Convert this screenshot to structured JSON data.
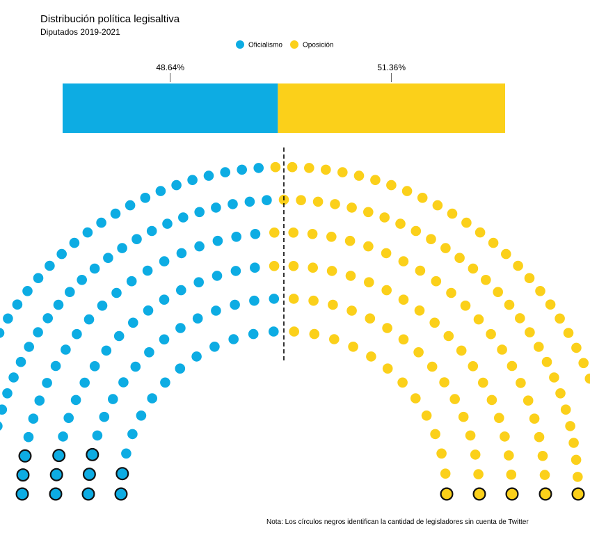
{
  "chart_data": {
    "type": "parliament",
    "title": "Distribución política legisaltiva",
    "subtitle": "Diputados 2019-2021",
    "note": "Nota: Los círculos negros identifican la cantidad de legisladores sin cuenta de Twitter",
    "legend": {
      "position": "top-center",
      "entries": [
        {
          "name": "Oficialismo",
          "color": "#0DACE3"
        },
        {
          "name": "Oposición",
          "color": "#FBD01A"
        }
      ]
    },
    "share_bar": {
      "segments": [
        {
          "name": "Oficialismo",
          "value": 48.64,
          "label": "48.64%",
          "color": "#0DACE3"
        },
        {
          "name": "Oposición",
          "value": 51.36,
          "label": "51.36%",
          "color": "#FBD01A"
        }
      ]
    },
    "seats": {
      "total": 257,
      "series": [
        {
          "name": "Oficialismo",
          "seats": 125,
          "without_twitter": 17,
          "color": "#0DACE3"
        },
        {
          "name": "Oposición",
          "seats": 132,
          "without_twitter": 5,
          "color": "#FBD01A"
        }
      ]
    },
    "divider": "dashed-center-line"
  }
}
